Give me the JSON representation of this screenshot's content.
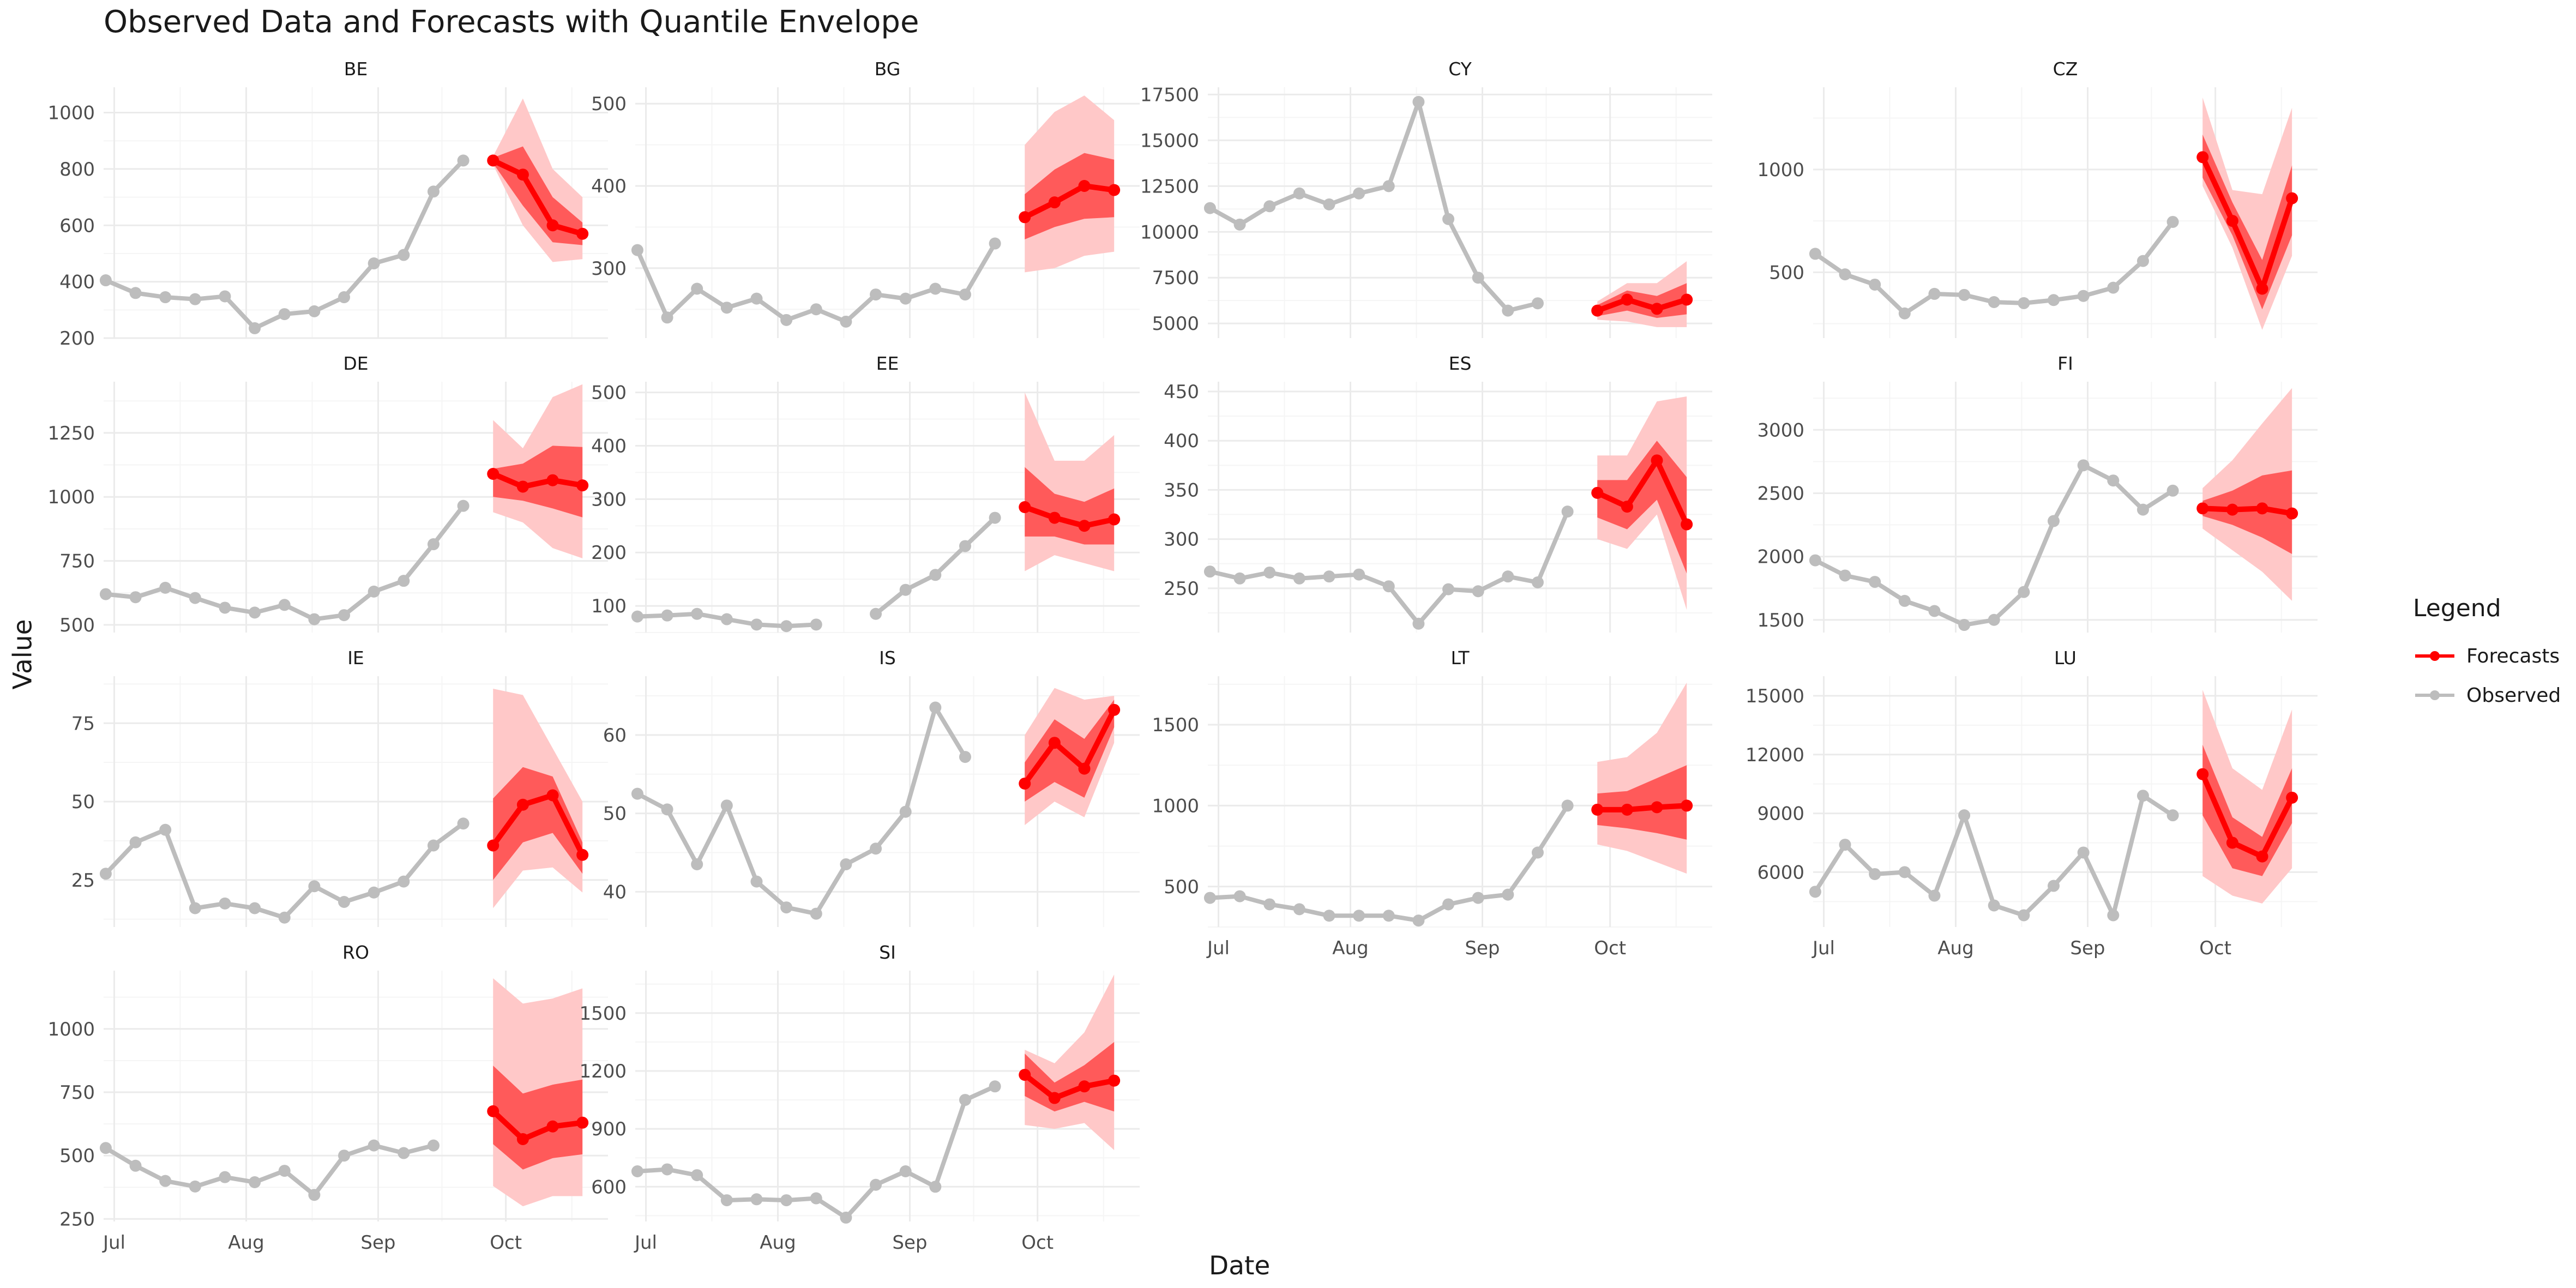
{
  "title": "Observed Data and Forecasts with Quantile Envelope",
  "colors": {
    "observed": "#bdbdbd",
    "forecast": "#ff0000",
    "band_inner": "#ff5a5a",
    "band_outer": "#ffc8c8",
    "grid_major": "#ebebeb",
    "grid_minor": "#f5f5f5"
  },
  "chart_data": {
    "type": "line",
    "xlabel": "Date",
    "ylabel": "Value",
    "legend": {
      "title": "Legend",
      "position": "right",
      "items": [
        {
          "label": "Forecasts",
          "color": "#ff0000"
        },
        {
          "label": "Observed",
          "color": "#bdbdbd"
        }
      ]
    },
    "x_tick_labels": [
      "Jul",
      "Aug",
      "Sep",
      "Oct"
    ],
    "x_tick_days": [
      2,
      33,
      64,
      94
    ],
    "x_range_days": [
      -0.5,
      118
    ],
    "observed_x_days": [
      0,
      7,
      14,
      21,
      28,
      35,
      42,
      49,
      56,
      63,
      70,
      77,
      84,
      91
    ],
    "forecast_x_days": [
      91,
      98,
      105,
      112
    ],
    "grid": true,
    "panels": [
      {
        "name": "BE",
        "yticks": [
          200,
          400,
          600,
          800,
          1000
        ],
        "ylim": [
          200,
          1090
        ],
        "observed": [
          405,
          360,
          345,
          338,
          348,
          235,
          285,
          295,
          345,
          465,
          495,
          720,
          830,
          null
        ],
        "forecast": [
          830,
          780,
          600,
          570
        ],
        "band_inner": {
          "lower": [
            820,
            670,
            540,
            530
          ],
          "upper": [
            840,
            880,
            700,
            610
          ]
        },
        "band_outer": {
          "lower": [
            815,
            600,
            470,
            480
          ],
          "upper": [
            845,
            1050,
            800,
            700
          ]
        }
      },
      {
        "name": "BG",
        "yticks": [
          300,
          400,
          500
        ],
        "ylim": [
          215,
          520
        ],
        "observed": [
          322,
          240,
          275,
          252,
          263,
          237,
          250,
          235,
          268,
          263,
          275,
          268,
          330,
          null
        ],
        "forecast": [
          362,
          380,
          400,
          395
        ],
        "band_inner": {
          "lower": [
            335,
            350,
            360,
            362
          ],
          "upper": [
            390,
            420,
            440,
            432
          ]
        },
        "band_outer": {
          "lower": [
            295,
            300,
            315,
            320
          ],
          "upper": [
            450,
            490,
            510,
            480
          ]
        }
      },
      {
        "name": "CY",
        "yticks": [
          5000,
          7500,
          10000,
          12500,
          15000,
          17500
        ],
        "ylim": [
          4200,
          17900
        ],
        "observed": [
          11300,
          10400,
          11400,
          12100,
          11500,
          12100,
          12500,
          17100,
          10700,
          7500,
          5700,
          6100,
          null,
          null
        ],
        "forecast": [
          5700,
          6300,
          5800,
          6300
        ],
        "band_inner": {
          "lower": [
            5400,
            5700,
            5300,
            5500
          ],
          "upper": [
            6000,
            6800,
            6500,
            7200
          ]
        },
        "band_outer": {
          "lower": [
            5200,
            5100,
            4800,
            4800
          ],
          "upper": [
            6200,
            7200,
            7200,
            8400
          ]
        }
      },
      {
        "name": "CZ",
        "yticks": [
          500,
          1000
        ],
        "ylim": [
          180,
          1400
        ],
        "observed": [
          590,
          490,
          440,
          300,
          395,
          390,
          355,
          350,
          365,
          385,
          425,
          555,
          745,
          null
        ],
        "forecast": [
          1060,
          750,
          420,
          860
        ],
        "band_inner": {
          "lower": [
            960,
            680,
            320,
            680
          ],
          "upper": [
            1170,
            840,
            560,
            1020
          ]
        },
        "band_outer": {
          "lower": [
            920,
            620,
            220,
            580
          ],
          "upper": [
            1350,
            900,
            880,
            1300
          ]
        }
      },
      {
        "name": "DE",
        "yticks": [
          500,
          750,
          1000,
          1250
        ],
        "ylim": [
          470,
          1450
        ],
        "observed": [
          620,
          608,
          645,
          605,
          567,
          548,
          578,
          522,
          538,
          630,
          672,
          815,
          965,
          null
        ],
        "forecast": [
          1090,
          1040,
          1065,
          1045
        ],
        "band_inner": {
          "lower": [
            1000,
            985,
            955,
            920
          ],
          "upper": [
            1110,
            1130,
            1200,
            1195
          ]
        },
        "band_outer": {
          "lower": [
            940,
            900,
            800,
            760
          ],
          "upper": [
            1300,
            1190,
            1390,
            1440
          ]
        }
      },
      {
        "name": "EE",
        "yticks": [
          100,
          200,
          300,
          400,
          500
        ],
        "ylim": [
          50,
          520
        ],
        "observed": [
          80,
          82,
          85,
          75,
          65,
          62,
          65,
          null,
          85,
          130,
          158,
          212,
          265,
          null
        ],
        "forecast": [
          285,
          265,
          250,
          262
        ],
        "band_inner": {
          "lower": [
            230,
            230,
            215,
            215
          ],
          "upper": [
            360,
            310,
            295,
            320
          ]
        },
        "band_outer": {
          "lower": [
            165,
            195,
            180,
            165
          ],
          "upper": [
            500,
            372,
            372,
            420
          ]
        }
      },
      {
        "name": "ES",
        "yticks": [
          250,
          300,
          350,
          400,
          450
        ],
        "ylim": [
          205,
          460
        ],
        "observed": [
          267,
          260,
          266,
          260,
          262,
          264,
          252,
          214,
          249,
          247,
          262,
          256,
          328,
          null
        ],
        "forecast": [
          347,
          333,
          380,
          315
        ],
        "band_inner": {
          "lower": [
            322,
            310,
            340,
            265
          ],
          "upper": [
            360,
            360,
            400,
            363
          ]
        },
        "band_outer": {
          "lower": [
            300,
            290,
            325,
            228
          ],
          "upper": [
            385,
            385,
            440,
            445
          ]
        }
      },
      {
        "name": "FI",
        "yticks": [
          1500,
          2000,
          2500,
          3000
        ],
        "ylim": [
          1400,
          3380
        ],
        "observed": [
          1970,
          1850,
          1800,
          1650,
          1570,
          1460,
          1500,
          1720,
          2280,
          2720,
          2600,
          2370,
          2520,
          null
        ],
        "forecast": [
          2380,
          2370,
          2380,
          2340
        ],
        "band_inner": {
          "lower": [
            2320,
            2250,
            2150,
            2020
          ],
          "upper": [
            2440,
            2520,
            2640,
            2680
          ]
        },
        "band_outer": {
          "lower": [
            2220,
            2050,
            1880,
            1650
          ],
          "upper": [
            2540,
            2760,
            3050,
            3330
          ]
        }
      },
      {
        "name": "IE",
        "yticks": [
          25,
          50,
          75
        ],
        "ylim": [
          10,
          90
        ],
        "observed": [
          27,
          37,
          41,
          16,
          17.5,
          16,
          13,
          23,
          18,
          21,
          24.5,
          36,
          43,
          null
        ],
        "forecast": [
          36,
          49,
          52,
          33
        ],
        "band_inner": {
          "lower": [
            25,
            37,
            40,
            27
          ],
          "upper": [
            51,
            61,
            58,
            37
          ]
        },
        "band_outer": {
          "lower": [
            16,
            28,
            29,
            21
          ],
          "upper": [
            86,
            84,
            67,
            50
          ]
        }
      },
      {
        "name": "IS",
        "yticks": [
          40,
          50,
          60
        ],
        "ylim": [
          35.5,
          67.5
        ],
        "observed": [
          52.5,
          50.5,
          43.5,
          51,
          41.3,
          38,
          37.2,
          43.5,
          45.5,
          50.2,
          63.5,
          57.2,
          null,
          null
        ],
        "forecast": [
          53.8,
          59,
          55.7,
          63.2
        ],
        "band_inner": {
          "lower": [
            51.5,
            54,
            52,
            61
          ],
          "upper": [
            56.5,
            62,
            59.5,
            64.5
          ]
        },
        "band_outer": {
          "lower": [
            48.5,
            51.5,
            49.5,
            59
          ],
          "upper": [
            60,
            66,
            64.5,
            65
          ]
        }
      },
      {
        "name": "LT",
        "yticks": [
          500,
          1000,
          1500
        ],
        "ylim": [
          250,
          1800
        ],
        "observed": [
          430,
          440,
          390,
          360,
          320,
          320,
          320,
          290,
          390,
          430,
          450,
          710,
          1000,
          null
        ],
        "forecast": [
          975,
          975,
          990,
          1000
        ],
        "band_inner": {
          "lower": [
            880,
            860,
            830,
            790
          ],
          "upper": [
            1075,
            1090,
            1170,
            1250
          ]
        },
        "band_outer": {
          "lower": [
            760,
            720,
            650,
            580
          ],
          "upper": [
            1270,
            1300,
            1450,
            1760
          ]
        }
      },
      {
        "name": "LU",
        "yticks": [
          6000,
          9000,
          12000,
          15000
        ],
        "ylim": [
          3200,
          16000
        ],
        "observed": [
          5000,
          7400,
          5900,
          6000,
          4800,
          8900,
          4300,
          3800,
          5300,
          7000,
          3800,
          9900,
          8900,
          null
        ],
        "forecast": [
          11000,
          7500,
          6800,
          9800
        ],
        "band_inner": {
          "lower": [
            8900,
            6200,
            5800,
            8500
          ],
          "upper": [
            12500,
            8800,
            7800,
            11300
          ]
        },
        "band_outer": {
          "lower": [
            5800,
            4800,
            4400,
            6200
          ],
          "upper": [
            15300,
            11300,
            10200,
            14300
          ]
        }
      },
      {
        "name": "RO",
        "yticks": [
          250,
          500,
          750,
          1000
        ],
        "ylim": [
          240,
          1230
        ],
        "observed": [
          530,
          460,
          400,
          378,
          415,
          395,
          440,
          345,
          500,
          540,
          510,
          540,
          null,
          null
        ],
        "forecast": [
          675,
          565,
          615,
          630
        ],
        "band_inner": {
          "lower": [
            545,
            445,
            490,
            505
          ],
          "upper": [
            855,
            745,
            780,
            800
          ]
        },
        "band_outer": {
          "lower": [
            380,
            300,
            340,
            340
          ],
          "upper": [
            1200,
            1100,
            1120,
            1160
          ]
        }
      },
      {
        "name": "SI",
        "yticks": [
          600,
          900,
          1200,
          1500
        ],
        "ylim": [
          420,
          1720
        ],
        "observed": [
          680,
          690,
          660,
          530,
          535,
          530,
          540,
          440,
          610,
          680,
          600,
          1050,
          1120,
          null
        ],
        "forecast": [
          1180,
          1060,
          1120,
          1150
        ],
        "band_inner": {
          "lower": [
            1070,
            990,
            1040,
            990
          ],
          "upper": [
            1290,
            1140,
            1230,
            1350
          ]
        },
        "band_outer": {
          "lower": [
            920,
            900,
            930,
            790
          ],
          "upper": [
            1310,
            1240,
            1400,
            1700
          ]
        }
      }
    ]
  }
}
